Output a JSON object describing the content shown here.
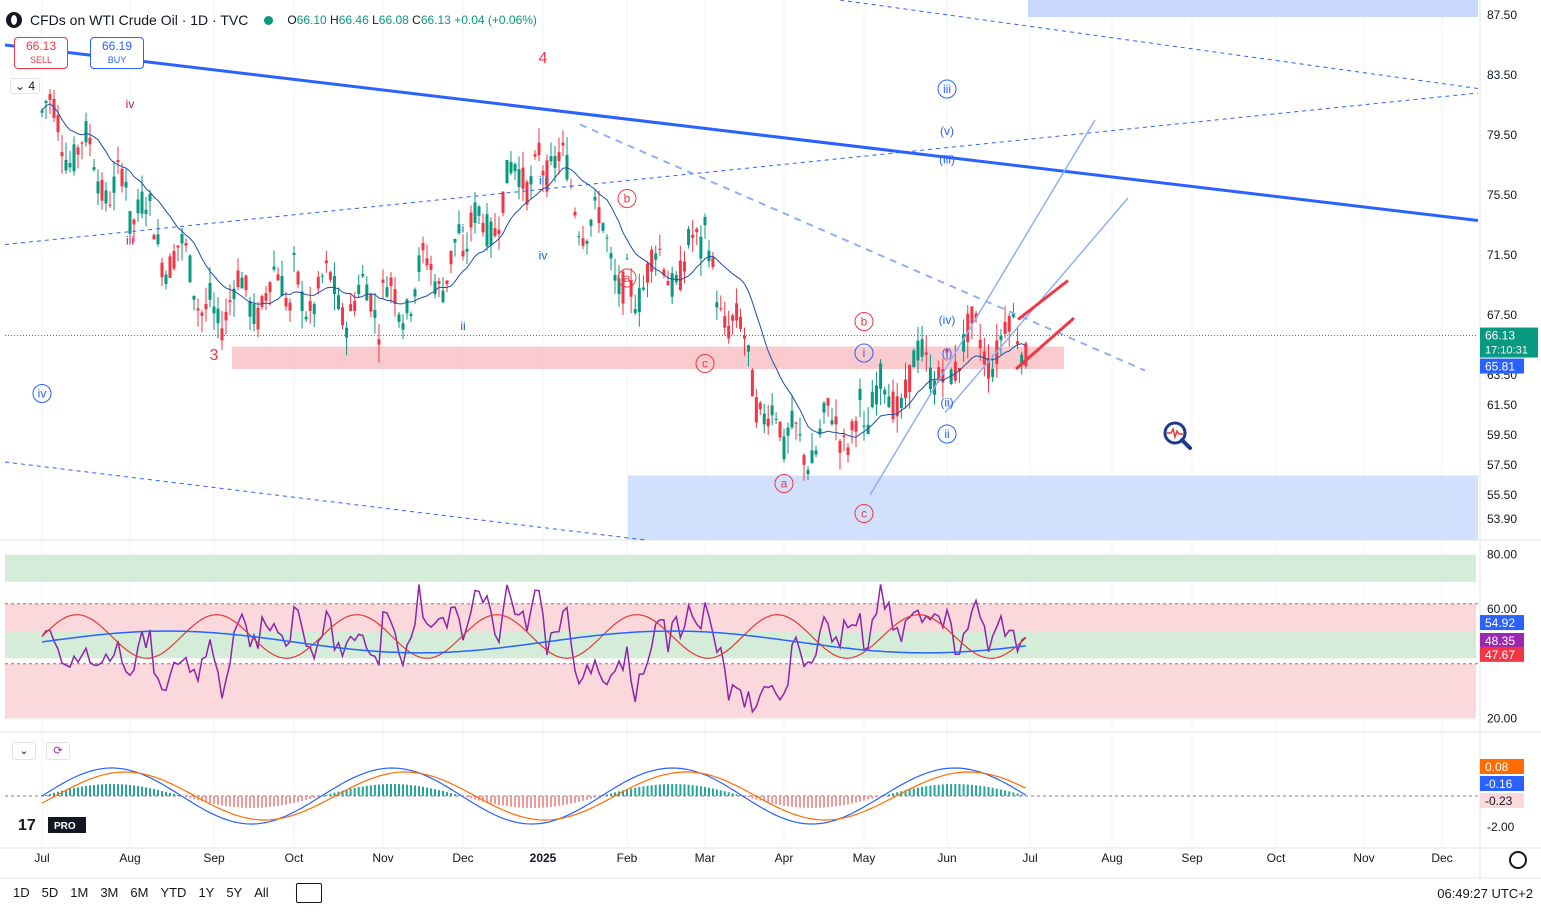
{
  "header": {
    "title": "CFDs on WTI Crude Oil · 1D · TVC",
    "ohlc": [
      {
        "k": "O",
        "v": "66.10"
      },
      {
        "k": "H",
        "v": "66.46"
      },
      {
        "k": "L",
        "v": "66.08"
      },
      {
        "k": "C",
        "v": "66.13"
      }
    ],
    "change": "+0.04 (+0.06%)"
  },
  "trade": {
    "sell_price": "66.13",
    "sell_label": "SELL",
    "buy_price": "66.19",
    "buy_label": "BUY"
  },
  "indicators_toggle": "4",
  "bottom_bar": {
    "ranges": [
      "1D",
      "5D",
      "1M",
      "3M",
      "6M",
      "YTD",
      "1Y",
      "5Y",
      "All"
    ],
    "time": "06:49:27 UTC+2"
  },
  "colors": {
    "up": "#089981",
    "down": "#f23645",
    "blue": "#2962ff",
    "grid": "#f0f3fa"
  },
  "chart_data": {
    "type": "candlestick",
    "x_labels": [
      "Jul",
      "Aug",
      "Sep",
      "Oct",
      "Nov",
      "Dec",
      "2025",
      "Feb",
      "Mar",
      "Apr",
      "May",
      "Jun",
      "Jul",
      "Aug",
      "Sep",
      "Oct",
      "Nov",
      "Dec"
    ],
    "price_axis": [
      "87.50",
      "83.50",
      "79.50",
      "75.50",
      "71.50",
      "67.50",
      "63.50",
      "61.50",
      "59.50",
      "57.50",
      "55.50",
      "53.90"
    ],
    "ylim": [
      52.5,
      88.5
    ],
    "last_price": "66.13",
    "countdown": "17:10:31",
    "ma_value": "65.81",
    "monthly_closes": [
      {
        "x": "Jul",
        "price": 81.0
      },
      {
        "x": "Aug",
        "price": 75.0
      },
      {
        "x": "Sep",
        "price": 68.2
      },
      {
        "x": "Oct",
        "price": 69.3
      },
      {
        "x": "Nov",
        "price": 68.0
      },
      {
        "x": "Dec",
        "price": 71.7
      },
      {
        "x": "2025",
        "price": 78.8
      },
      {
        "x": "Feb",
        "price": 69.8
      },
      {
        "x": "Mar",
        "price": 71.5
      },
      {
        "x": "Apr",
        "price": 58.2
      },
      {
        "x": "May",
        "price": 60.8
      },
      {
        "x": "Jun",
        "price": 65.1
      },
      {
        "x": "Jul",
        "price": 66.13
      }
    ],
    "wave_labels": [
      {
        "text": "3",
        "x": "Sep",
        "price": 64.5,
        "color": "#f23645"
      },
      {
        "text": "4",
        "x": "2025",
        "price": 84.3,
        "color": "#f23645"
      },
      {
        "text": "iii",
        "x": "Aug",
        "price": 72.2,
        "color": "#c2185b"
      },
      {
        "text": "iv",
        "x": "Aug",
        "price": 81.3,
        "color": "#c2185b"
      },
      {
        "text": "i",
        "x": "Dec",
        "price": 73.0,
        "color": "#1565c0"
      },
      {
        "text": "ii",
        "x": "Dec",
        "price": 66.5,
        "color": "#1565c0"
      },
      {
        "text": "iii",
        "x": "2025",
        "price": 76.2,
        "color": "#1565c0"
      },
      {
        "text": "iv",
        "x": "2025",
        "price": 71.2,
        "color": "#1565c0"
      },
      {
        "text": "a",
        "x": "Feb",
        "price": 69.7,
        "color": "#f23645"
      },
      {
        "text": "b",
        "x": "Feb",
        "price": 75.0,
        "color": "#f23645"
      },
      {
        "text": "c",
        "x": "Mar",
        "price": 64.0,
        "color": "#f23645"
      },
      {
        "text": "a",
        "x": "Apr",
        "price": 56.0,
        "color": "#f23645"
      },
      {
        "text": "b",
        "x": "May",
        "price": 66.8,
        "color": "#f23645"
      },
      {
        "text": "c",
        "x": "May",
        "price": 54.0,
        "color": "#f23645"
      },
      {
        "text": "i",
        "x": "May",
        "price": 64.7,
        "color": "#2962ff"
      },
      {
        "text": "ii",
        "x": "Jun",
        "price": 59.3,
        "color": "#2962ff"
      },
      {
        "text": "iii",
        "x": "Jun",
        "price": 82.3,
        "color": "#2962ff"
      },
      {
        "text": "iv",
        "x": "Jul",
        "price": 62.0,
        "color": "#2962ff"
      },
      {
        "text": "(i)",
        "x": "Jun",
        "price": 64.7,
        "color": "#2962ff"
      },
      {
        "text": "(ii)",
        "x": "Jun",
        "price": 61.4,
        "color": "#2962ff"
      },
      {
        "text": "(iii)",
        "x": "Jun",
        "price": 77.6,
        "color": "#2962ff"
      },
      {
        "text": "(iv)",
        "x": "Jun",
        "price": 66.9,
        "color": "#2962ff"
      },
      {
        "text": "(v)",
        "x": "Jun",
        "price": 79.5,
        "color": "#2962ff"
      }
    ],
    "rsi": {
      "levels": [
        "80.00",
        "60.00",
        "20.00"
      ],
      "ylim": [
        15,
        85
      ],
      "values": {
        "ma": "54.92",
        "signal": "48.35",
        "rsi": "47.67"
      }
    },
    "macd": {
      "levels": [
        "-2.00"
      ],
      "values": {
        "histogram": "0.08",
        "macd": "-0.16",
        "signal": "-0.23"
      }
    }
  }
}
